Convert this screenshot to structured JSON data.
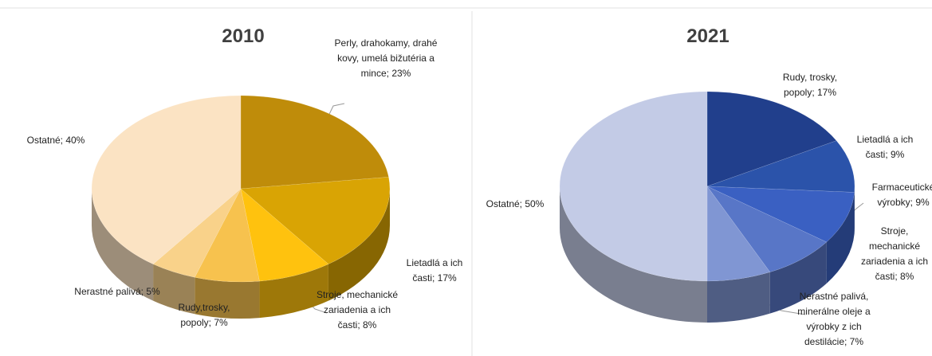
{
  "chart_data": [
    {
      "type": "pie",
      "title": "2010",
      "values": [
        23,
        17,
        8,
        7,
        5,
        40
      ],
      "value_labels": [
        "Perly, drahokamy, drahé kovy, umelá bižutéria a mince; 23%",
        "Lietadlá a ich časti; 17%",
        "Stroje, mechanické zariadenia a ich časti; 8%",
        "Rudy,trosky, popoly; 7%",
        "Nerastné palivá; 5%",
        "Ostatné; 40%"
      ],
      "colors": [
        "#bf8c0a",
        "#d9a404",
        "#ffc20e",
        "#f7c24e",
        "#f9d28a",
        "#fbe3c3"
      ]
    },
    {
      "type": "pie",
      "title": "2021",
      "values": [
        17,
        9,
        9,
        8,
        7,
        50
      ],
      "value_labels": [
        "Rudy, trosky, popoly; 17%",
        "Lietadlá a ich časti; 9%",
        "Farmaceutické výrobky; 9%",
        "Stroje, mechanické zariadenia a ich časti; 8%",
        "Nerastné palivá, minerálne oleje a výrobky z ich destilácie; 7%",
        "Ostatné; 50%"
      ],
      "colors": [
        "#213f8c",
        "#2b53aa",
        "#3a60c2",
        "#5876c7",
        "#8096d3",
        "#c3cbe6"
      ]
    }
  ]
}
